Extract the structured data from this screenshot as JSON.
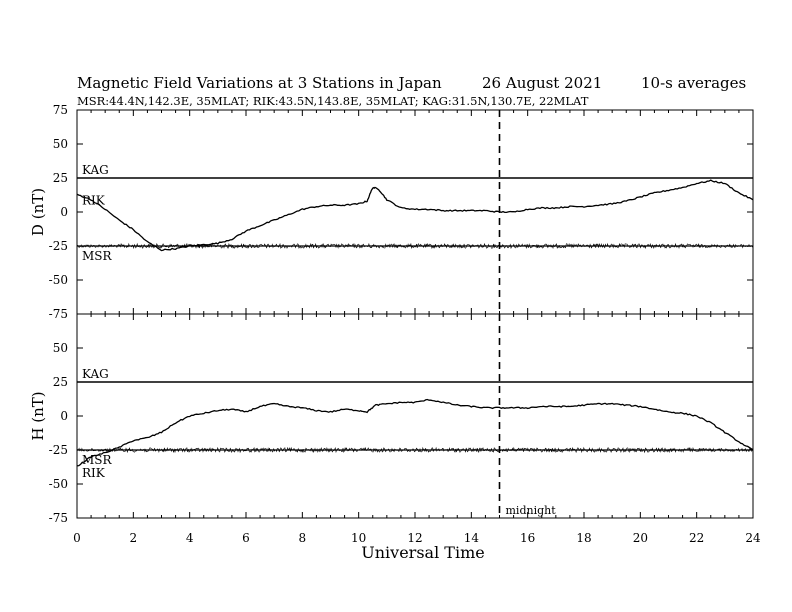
{
  "header": {
    "title": "Magnetic Field Variations at 3 Stations in Japan",
    "date": "26  August  2021",
    "averaging": "10-s averages",
    "stations_line": "MSR:44.4N,142.3E, 35MLAT;  RIK:43.5N,143.8E, 35MLAT;  KAG:31.5N,130.7E, 22MLAT"
  },
  "chart_data": {
    "type": "line",
    "xlabel": "Universal Time",
    "x_range": [
      0,
      24
    ],
    "x_ticks": [
      "0",
      "2",
      "4",
      "6",
      "8",
      "10",
      "12",
      "14",
      "16",
      "18",
      "20",
      "22",
      "24"
    ],
    "midnight_marker": {
      "x": 15,
      "label": "midnight",
      "style": "dashed"
    },
    "panels": [
      {
        "name": "D",
        "ylabel": "D (nT)",
        "ylim": [
          -75,
          75
        ],
        "y_ticks": [
          "75",
          "50",
          "25",
          "0",
          "-25",
          "-50",
          "-75"
        ],
        "station_labels": [
          "KAG",
          "RIK",
          "MSR"
        ],
        "series": [
          {
            "name": "KAG",
            "x": [
              0,
              24
            ],
            "y": [
              25,
              25
            ]
          },
          {
            "name": "MSR",
            "x": [
              0,
              24
            ],
            "y": [
              -25,
              -25
            ]
          },
          {
            "name": "RIK",
            "x": [
              0,
              0.5,
              1,
              1.5,
              2,
              2.5,
              3,
              3.5,
              4,
              4.5,
              5,
              5.5,
              6,
              6.5,
              7,
              7.5,
              8,
              8.5,
              9,
              9.5,
              10,
              10.3,
              10.5,
              10.7,
              11,
              11.5,
              12,
              12.5,
              13,
              13.5,
              14,
              14.5,
              15,
              15.5,
              16,
              16.5,
              17,
              17.5,
              18,
              18.5,
              19,
              19.5,
              20,
              20.5,
              21,
              21.5,
              22,
              22.5,
              23,
              23.5,
              24
            ],
            "y": [
              13,
              9,
              2,
              -6,
              -13,
              -22,
              -28,
              -27,
              -25,
              -24,
              -23,
              -20,
              -14,
              -10,
              -6,
              -2,
              2,
              4,
              5,
              5,
              6,
              8,
              18,
              17,
              9,
              3,
              2,
              2,
              1,
              1,
              1,
              1,
              0,
              0,
              2,
              3,
              3,
              4,
              4,
              5,
              6,
              8,
              11,
              14,
              16,
              18,
              21,
              23,
              21,
              14,
              9
            ]
          }
        ]
      },
      {
        "name": "H",
        "ylabel": "H (nT)",
        "ylim": [
          -75,
          75
        ],
        "y_ticks": [
          "75",
          "50",
          "25",
          "0",
          "-25",
          "-50",
          "-75"
        ],
        "station_labels": [
          "KAG",
          "MSR",
          "RIK"
        ],
        "series": [
          {
            "name": "KAG",
            "x": [
              0,
              24
            ],
            "y": [
              25,
              25
            ]
          },
          {
            "name": "MSR",
            "x": [
              0,
              24
            ],
            "y": [
              -25,
              -25
            ]
          },
          {
            "name": "RIK",
            "x": [
              0,
              0.5,
              1,
              1.5,
              2,
              2.5,
              3,
              3.5,
              4,
              4.5,
              5,
              5.5,
              6,
              6.5,
              7,
              7.5,
              8,
              8.5,
              9,
              9.5,
              10,
              10.3,
              10.6,
              11,
              11.5,
              12,
              12.5,
              13,
              13.5,
              14,
              14.5,
              15,
              15.5,
              16,
              16.5,
              17,
              17.5,
              18,
              18.5,
              19,
              19.5,
              20,
              20.5,
              21,
              21.5,
              22,
              22.5,
              23,
              23.5,
              24
            ],
            "y": [
              -37,
              -30,
              -27,
              -23,
              -18,
              -16,
              -12,
              -5,
              0,
              2,
              4,
              5,
              3,
              7,
              9,
              7,
              6,
              4,
              3,
              5,
              4,
              3,
              8,
              9,
              10,
              10,
              12,
              10,
              8,
              7,
              6,
              6,
              6,
              6,
              7,
              7,
              7,
              8,
              9,
              9,
              8,
              7,
              5,
              3,
              2,
              0,
              -5,
              -12,
              -19,
              -25
            ]
          }
        ]
      }
    ]
  }
}
